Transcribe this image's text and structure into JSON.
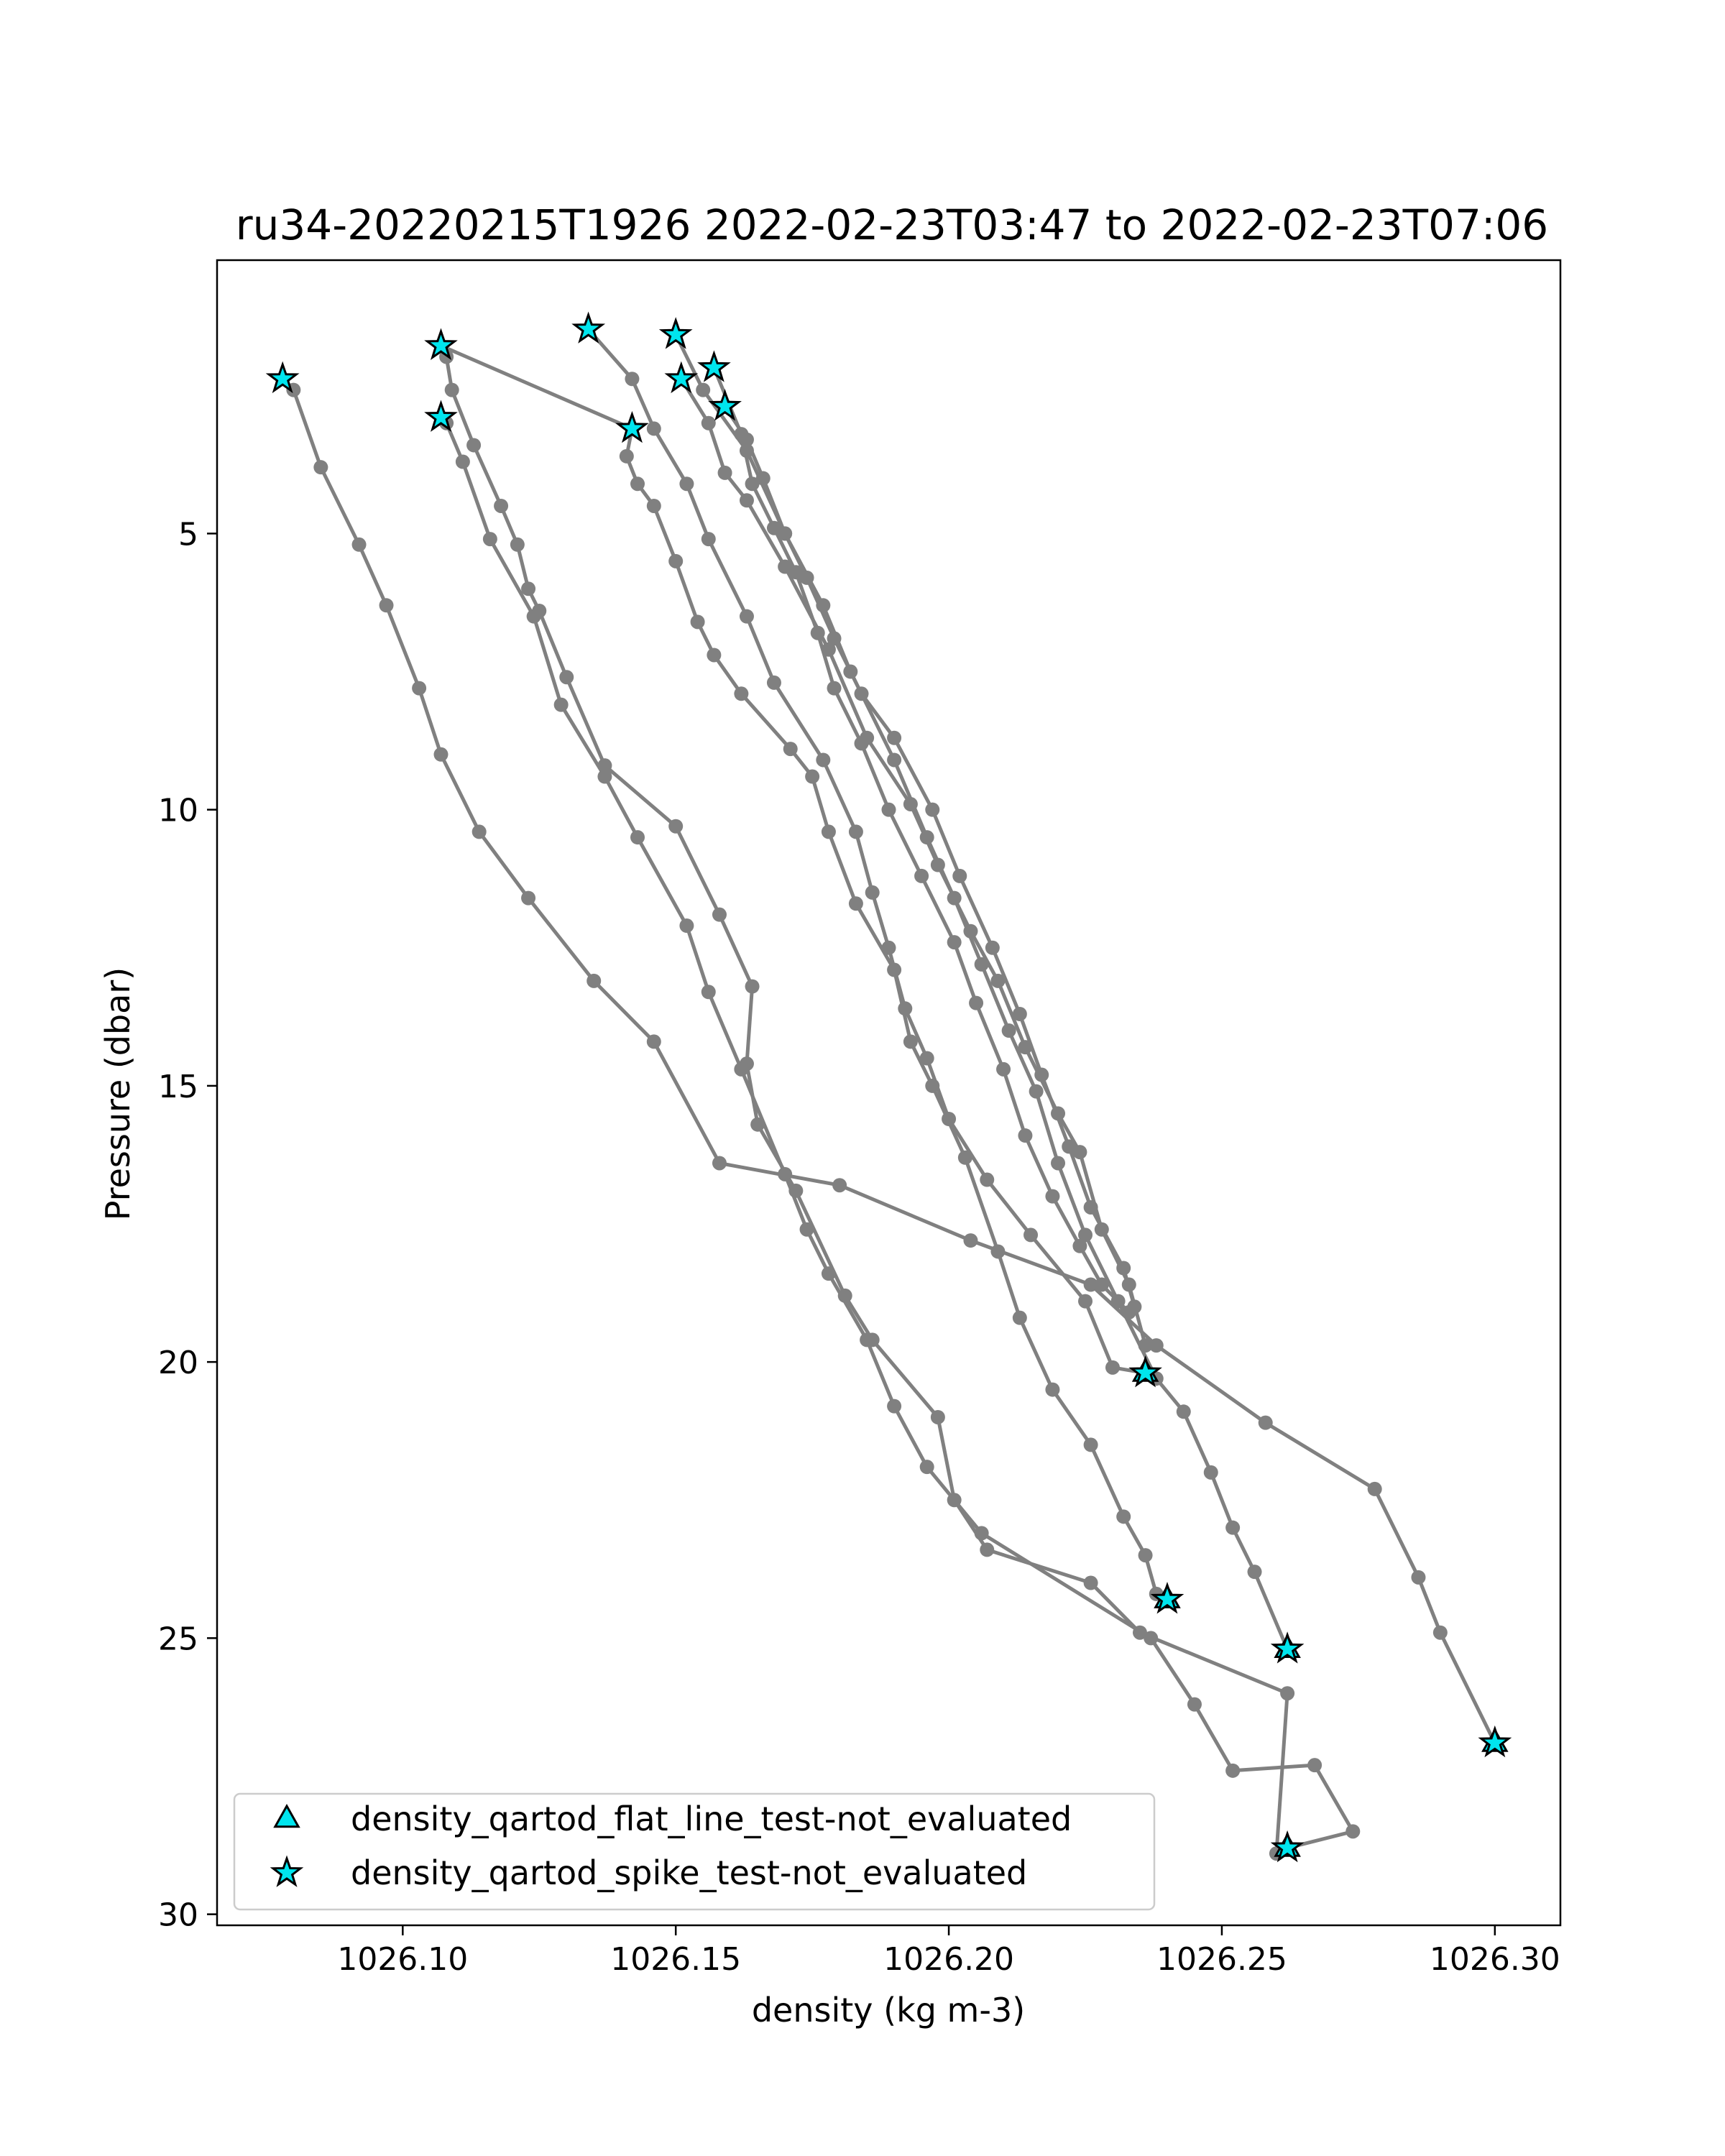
{
  "chart_data": {
    "type": "scatter",
    "title": "ru34-20220215T1926 2022-02-23T03:47 to 2022-02-23T07:06",
    "xlabel": "density (kg m-3)",
    "ylabel": "Pressure (dbar)",
    "xlim": [
      1026.066,
      1026.312
    ],
    "ylim": [
      30.2,
      0.05
    ],
    "y_inverted": true,
    "xticks": [
      1026.1,
      1026.15,
      1026.2,
      1026.25,
      1026.3
    ],
    "xtick_labels": [
      "1026.10",
      "1026.15",
      "1026.20",
      "1026.25",
      "1026.30"
    ],
    "yticks": [
      5,
      10,
      15,
      20,
      25,
      30
    ],
    "ytick_labels": [
      "5",
      "10",
      "15",
      "20",
      "25",
      "30"
    ],
    "grid": false,
    "legend_position": "lower-left",
    "profile_color": "#808080",
    "marker_fill": "#00E5EE",
    "series": [
      {
        "points": [
          [
            1026.078,
            2.2
          ],
          [
            1026.08,
            2.4
          ],
          [
            1026.085,
            3.8
          ],
          [
            1026.092,
            5.2
          ],
          [
            1026.097,
            6.3
          ],
          [
            1026.103,
            7.8
          ],
          [
            1026.107,
            9.0
          ],
          [
            1026.114,
            10.4
          ],
          [
            1026.123,
            11.6
          ],
          [
            1026.135,
            13.1
          ],
          [
            1026.146,
            14.2
          ],
          [
            1026.158,
            16.4
          ],
          [
            1026.18,
            16.8
          ],
          [
            1026.204,
            17.8
          ],
          [
            1026.226,
            18.6
          ],
          [
            1026.238,
            19.7
          ],
          [
            1026.258,
            21.1
          ],
          [
            1026.278,
            22.3
          ],
          [
            1026.286,
            23.9
          ],
          [
            1026.29,
            24.9
          ],
          [
            1026.3,
            26.9
          ]
        ]
      },
      {
        "points": [
          [
            1026.107,
            1.6
          ],
          [
            1026.108,
            1.8
          ],
          [
            1026.109,
            2.4
          ],
          [
            1026.113,
            3.4
          ],
          [
            1026.118,
            4.5
          ],
          [
            1026.121,
            5.2
          ],
          [
            1026.123,
            6.0
          ],
          [
            1026.125,
            6.4
          ],
          [
            1026.13,
            7.6
          ],
          [
            1026.137,
            9.2
          ],
          [
            1026.15,
            10.3
          ],
          [
            1026.158,
            11.9
          ],
          [
            1026.164,
            13.2
          ],
          [
            1026.163,
            14.6
          ],
          [
            1026.165,
            15.7
          ],
          [
            1026.172,
            16.9
          ],
          [
            1026.181,
            18.8
          ],
          [
            1026.186,
            19.6
          ],
          [
            1026.198,
            21.0
          ],
          [
            1026.201,
            22.5
          ],
          [
            1026.207,
            23.4
          ],
          [
            1026.226,
            24.0
          ],
          [
            1026.235,
            24.9
          ],
          [
            1026.262,
            26.0
          ],
          [
            1026.26,
            28.9
          ]
        ]
      },
      {
        "points": [
          [
            1026.107,
            2.9
          ],
          [
            1026.108,
            3.0
          ],
          [
            1026.111,
            3.7
          ],
          [
            1026.116,
            5.1
          ],
          [
            1026.124,
            6.5
          ],
          [
            1026.129,
            8.1
          ],
          [
            1026.137,
            9.4
          ],
          [
            1026.143,
            10.5
          ],
          [
            1026.152,
            12.1
          ],
          [
            1026.156,
            13.3
          ],
          [
            1026.162,
            14.7
          ],
          [
            1026.17,
            16.6
          ],
          [
            1026.174,
            17.6
          ],
          [
            1026.178,
            18.4
          ],
          [
            1026.185,
            19.6
          ],
          [
            1026.19,
            20.8
          ],
          [
            1026.196,
            21.9
          ],
          [
            1026.206,
            23.1
          ],
          [
            1026.237,
            25.0
          ],
          [
            1026.245,
            26.2
          ],
          [
            1026.252,
            27.4
          ],
          [
            1026.267,
            27.3
          ],
          [
            1026.274,
            28.5
          ],
          [
            1026.262,
            28.8
          ]
        ]
      },
      {
        "points": [
          [
            1026.107,
            1.6
          ],
          [
            1026.142,
            3.1
          ],
          [
            1026.141,
            3.6
          ],
          [
            1026.143,
            4.1
          ],
          [
            1026.146,
            4.5
          ],
          [
            1026.15,
            5.5
          ],
          [
            1026.154,
            6.6
          ],
          [
            1026.157,
            7.2
          ],
          [
            1026.162,
            7.9
          ],
          [
            1026.171,
            8.9
          ],
          [
            1026.175,
            9.4
          ],
          [
            1026.178,
            10.4
          ],
          [
            1026.183,
            11.7
          ],
          [
            1026.19,
            12.9
          ],
          [
            1026.193,
            14.2
          ],
          [
            1026.197,
            15.0
          ],
          [
            1026.203,
            16.3
          ],
          [
            1026.209,
            18.0
          ],
          [
            1026.213,
            19.2
          ],
          [
            1026.219,
            20.5
          ],
          [
            1026.226,
            21.5
          ],
          [
            1026.232,
            22.8
          ],
          [
            1026.236,
            23.5
          ],
          [
            1026.238,
            24.2
          ],
          [
            1026.24,
            24.3
          ]
        ]
      },
      {
        "points": [
          [
            1026.134,
            1.3
          ],
          [
            1026.142,
            2.2
          ],
          [
            1026.146,
            3.1
          ],
          [
            1026.152,
            4.1
          ],
          [
            1026.156,
            5.1
          ],
          [
            1026.163,
            6.5
          ],
          [
            1026.168,
            7.7
          ],
          [
            1026.177,
            9.1
          ],
          [
            1026.183,
            10.4
          ],
          [
            1026.186,
            11.5
          ],
          [
            1026.189,
            12.5
          ],
          [
            1026.192,
            13.6
          ],
          [
            1026.196,
            14.5
          ],
          [
            1026.2,
            15.6
          ],
          [
            1026.207,
            16.7
          ],
          [
            1026.215,
            17.7
          ],
          [
            1026.225,
            18.9
          ],
          [
            1026.23,
            20.1
          ],
          [
            1026.236,
            20.2
          ]
        ]
      },
      {
        "points": [
          [
            1026.15,
            1.4
          ],
          [
            1026.155,
            2.4
          ],
          [
            1026.163,
            3.5
          ],
          [
            1026.17,
            5.0
          ],
          [
            1026.177,
            6.3
          ],
          [
            1026.182,
            7.5
          ],
          [
            1026.19,
            9.1
          ],
          [
            1026.196,
            10.5
          ],
          [
            1026.201,
            11.6
          ],
          [
            1026.206,
            12.8
          ],
          [
            1026.211,
            14.0
          ],
          [
            1026.216,
            15.1
          ],
          [
            1026.22,
            16.4
          ],
          [
            1026.225,
            17.7
          ],
          [
            1026.231,
            18.9
          ],
          [
            1026.238,
            20.3
          ],
          [
            1026.243,
            20.9
          ],
          [
            1026.248,
            22.0
          ],
          [
            1026.252,
            23.0
          ],
          [
            1026.256,
            23.8
          ],
          [
            1026.262,
            25.2
          ]
        ]
      },
      {
        "points": [
          [
            1026.151,
            2.2
          ],
          [
            1026.156,
            3.0
          ],
          [
            1026.159,
            3.9
          ],
          [
            1026.163,
            4.4
          ],
          [
            1026.17,
            5.6
          ],
          [
            1026.178,
            7.1
          ],
          [
            1026.185,
            8.7
          ],
          [
            1026.193,
            9.9
          ],
          [
            1026.198,
            11.0
          ],
          [
            1026.204,
            12.2
          ],
          [
            1026.209,
            13.1
          ],
          [
            1026.214,
            14.3
          ],
          [
            1026.22,
            15.5
          ],
          [
            1026.224,
            16.2
          ],
          [
            1026.228,
            17.6
          ],
          [
            1026.233,
            18.6
          ],
          [
            1026.236,
            19.7
          ]
        ]
      },
      {
        "points": [
          [
            1026.157,
            2.0
          ],
          [
            1026.162,
            3.2
          ],
          [
            1026.164,
            4.1
          ],
          [
            1026.168,
            4.9
          ],
          [
            1026.172,
            5.7
          ],
          [
            1026.176,
            6.8
          ],
          [
            1026.179,
            7.8
          ],
          [
            1026.184,
            8.8
          ],
          [
            1026.189,
            10.0
          ],
          [
            1026.195,
            11.2
          ],
          [
            1026.201,
            12.4
          ],
          [
            1026.205,
            13.5
          ],
          [
            1026.21,
            14.7
          ],
          [
            1026.214,
            15.9
          ],
          [
            1026.219,
            17.0
          ],
          [
            1026.224,
            17.9
          ],
          [
            1026.228,
            18.6
          ],
          [
            1026.233,
            19.1
          ]
        ]
      },
      {
        "points": [
          [
            1026.159,
            2.7
          ],
          [
            1026.163,
            3.3
          ],
          [
            1026.166,
            4.0
          ],
          [
            1026.17,
            5.0
          ],
          [
            1026.174,
            5.8
          ],
          [
            1026.179,
            6.9
          ],
          [
            1026.184,
            7.9
          ],
          [
            1026.19,
            8.7
          ],
          [
            1026.197,
            10.0
          ],
          [
            1026.202,
            11.2
          ],
          [
            1026.208,
            12.5
          ],
          [
            1026.213,
            13.7
          ],
          [
            1026.217,
            14.8
          ],
          [
            1026.222,
            16.1
          ],
          [
            1026.226,
            17.2
          ],
          [
            1026.232,
            18.3
          ],
          [
            1026.234,
            19.0
          ]
        ]
      }
    ],
    "spike_markers": [
      [
        1026.078,
        2.2
      ],
      [
        1026.107,
        1.6
      ],
      [
        1026.107,
        2.9
      ],
      [
        1026.134,
        1.3
      ],
      [
        1026.15,
        1.4
      ],
      [
        1026.142,
        3.1
      ],
      [
        1026.151,
        2.2
      ],
      [
        1026.157,
        2.0
      ],
      [
        1026.159,
        2.7
      ],
      [
        1026.236,
        20.2
      ],
      [
        1026.24,
        24.3
      ],
      [
        1026.262,
        25.2
      ],
      [
        1026.262,
        28.8
      ],
      [
        1026.3,
        26.9
      ]
    ],
    "flatline_markers": [
      [
        1026.236,
        20.2
      ],
      [
        1026.24,
        24.3
      ],
      [
        1026.262,
        25.2
      ],
      [
        1026.262,
        28.8
      ],
      [
        1026.3,
        26.9
      ]
    ],
    "legend": [
      {
        "marker": "triangle",
        "label": "density_qartod_flat_line_test-not_evaluated"
      },
      {
        "marker": "star",
        "label": "density_qartod_spike_test-not_evaluated"
      }
    ]
  }
}
